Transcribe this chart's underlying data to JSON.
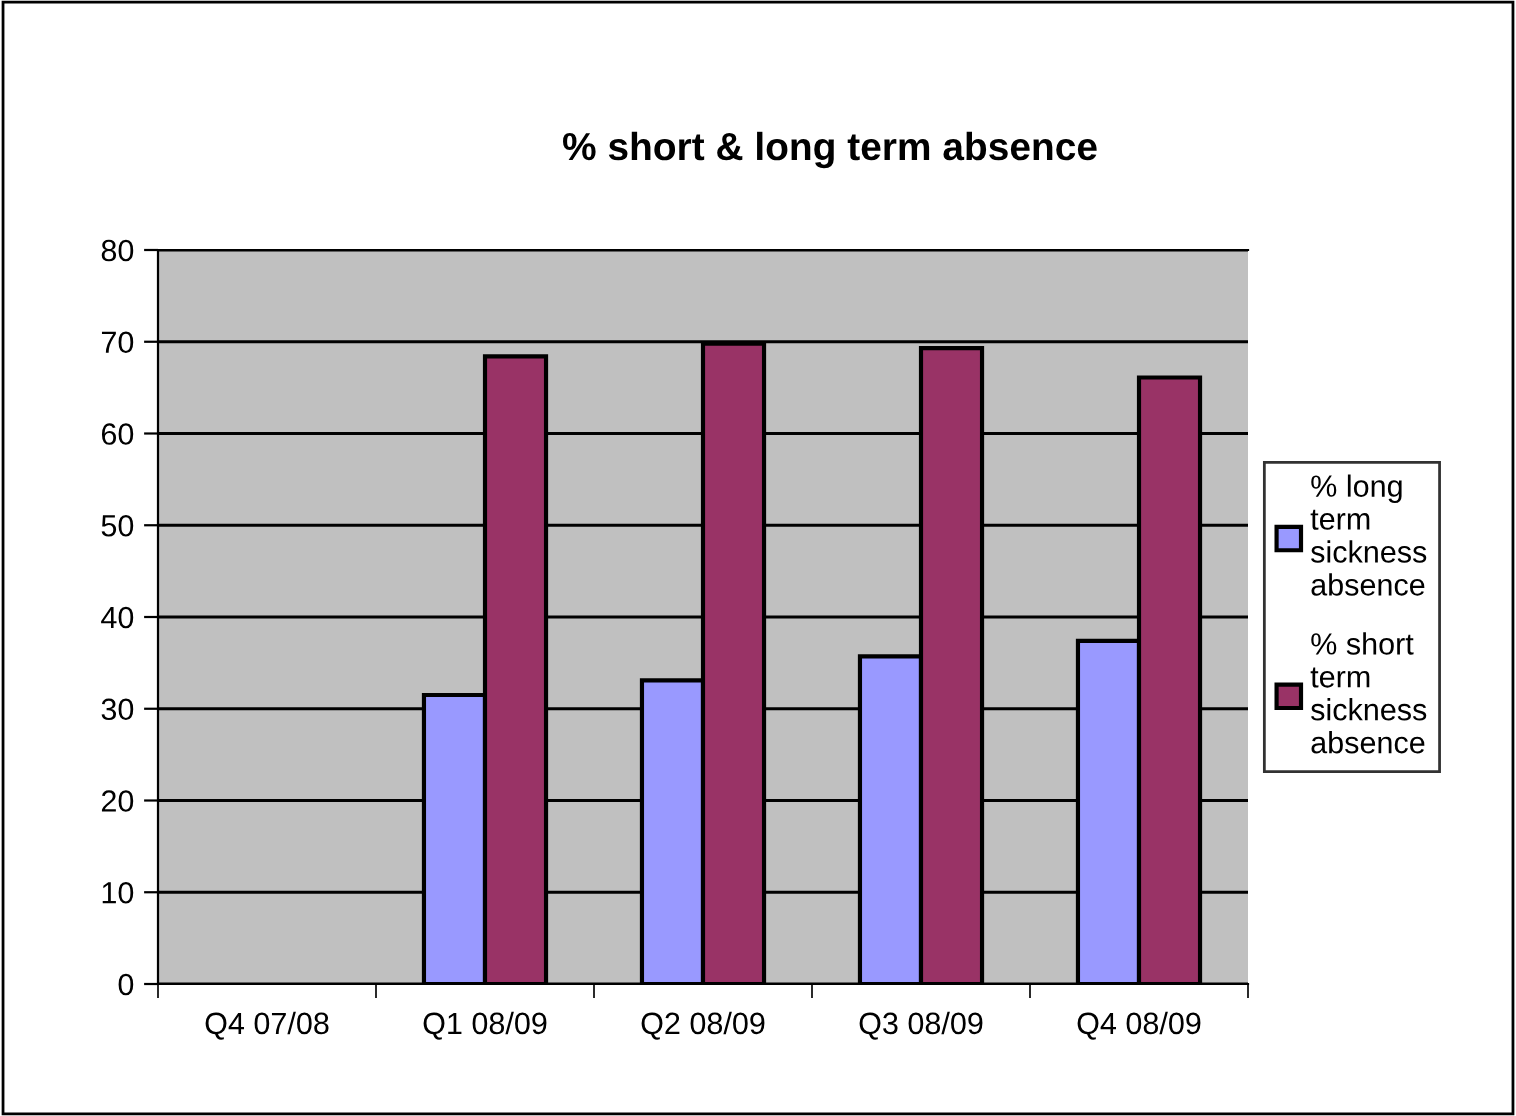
{
  "chart_data": {
    "type": "bar",
    "title": "% short & long term absence",
    "categories": [
      "Q4 07/08",
      "Q1 08/09",
      "Q2 08/09",
      "Q3 08/09",
      "Q4 08/09"
    ],
    "series": [
      {
        "name": "% long term sickness absence",
        "color": "#9999ff",
        "values": [
          null,
          31.5,
          33.1,
          35.7,
          37.4
        ]
      },
      {
        "name": "% short term sickness absence",
        "color": "#993366",
        "values": [
          null,
          68.4,
          69.8,
          69.3,
          66.1
        ]
      }
    ],
    "ylim": [
      0,
      80
    ],
    "yticks": [
      0,
      10,
      20,
      30,
      40,
      50,
      60,
      70,
      80
    ],
    "grid": "y",
    "legend": "right"
  }
}
